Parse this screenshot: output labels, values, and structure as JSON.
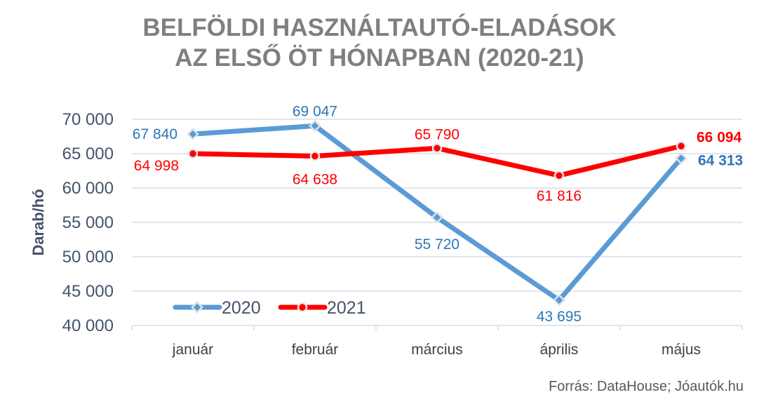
{
  "chart_data": {
    "type": "line",
    "title_line1": "BELFÖLDI HASZNÁLTAUTÓ-ELADÁSOK",
    "title_line2": "AZ ELSŐ ÖT HÓNAPBAN (2020-21)",
    "ylabel": "Darab/hó",
    "xlabel": "",
    "ylim": [
      40000,
      70000
    ],
    "yticks": [
      40000,
      45000,
      50000,
      55000,
      60000,
      65000,
      70000
    ],
    "ytick_labels": [
      "40 000",
      "45 000",
      "50 000",
      "55 000",
      "60 000",
      "65 000",
      "70 000"
    ],
    "grid": true,
    "legend_position": "bottom-left inside",
    "categories": [
      "január",
      "február",
      "március",
      "április",
      "május"
    ],
    "series": [
      {
        "name": "2020",
        "color": "#5b9bd5",
        "label_color": "#2e75b6",
        "marker": "diamond",
        "values": [
          67840,
          69047,
          55720,
          43695,
          64313
        ],
        "labels": [
          "67 840",
          "69 047",
          "55 720",
          "43 695",
          "64 313"
        ]
      },
      {
        "name": "2021",
        "color": "#ff0000",
        "label_color": "#ff0000",
        "marker": "circle",
        "values": [
          64998,
          64638,
          65790,
          61816,
          66094
        ],
        "labels": [
          "64 998",
          "64 638",
          "65 790",
          "61 816",
          "66 094"
        ]
      }
    ],
    "source": "Forrás: DataHouse; Jóautók.hu"
  }
}
